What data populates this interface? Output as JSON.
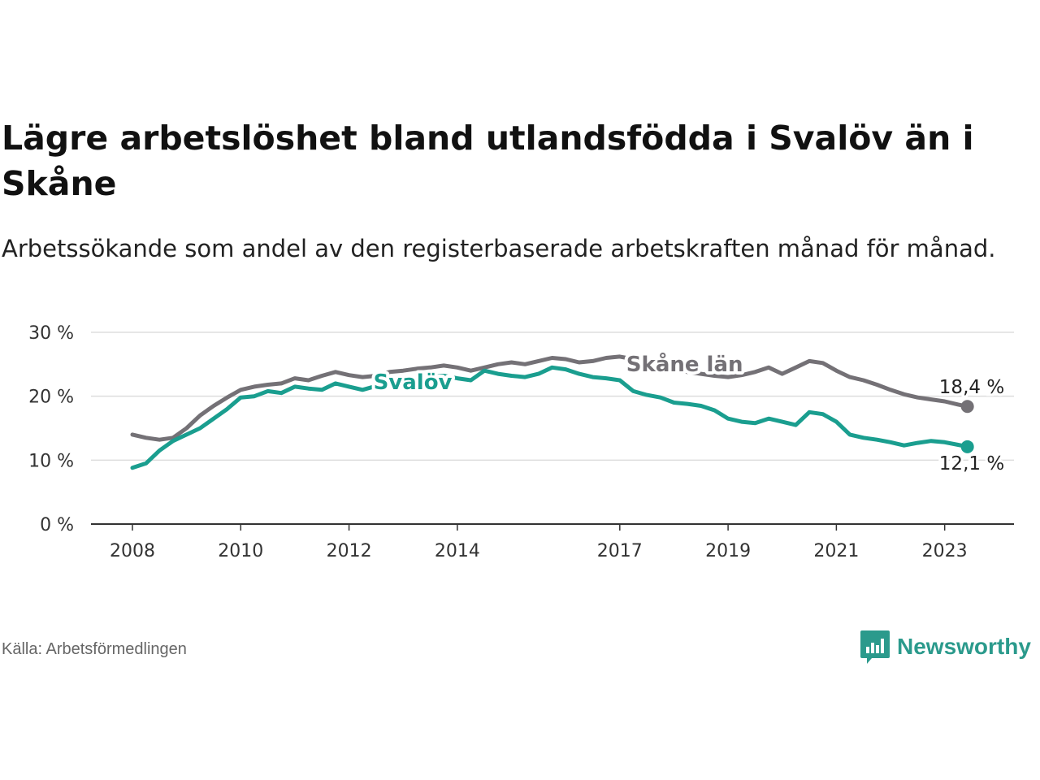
{
  "title": "Lägre arbetslöshet bland utlandsfödda i Svalöv än i Skåne",
  "subtitle": "Arbetssökande som andel av den registerbaserade arbetskraften månad för månad.",
  "source": "Källa: Arbetsförmedlingen",
  "brand": "Newsworthy",
  "colors": {
    "svalov": "#1a9e8f",
    "skane": "#747176",
    "grid": "#dddddd",
    "axis": "#333333",
    "brand": "#2b9a8c"
  },
  "chart_data": {
    "type": "line",
    "title": "",
    "xlabel": "",
    "ylabel": "",
    "ylim": [
      0,
      30
    ],
    "xlim": [
      2008.0,
      2023.5
    ],
    "y_ticks": [
      0,
      10,
      20,
      30
    ],
    "y_tick_labels": [
      "0 %",
      "10 %",
      "20 %",
      "30 %"
    ],
    "x_ticks": [
      2008,
      2010,
      2012,
      2014,
      2017,
      2019,
      2021,
      2023
    ],
    "x_tick_labels": [
      "2008",
      "2010",
      "2012",
      "2014",
      "2017",
      "2019",
      "2021",
      "2023"
    ],
    "grid": true,
    "series": [
      {
        "name": "Skåne län",
        "color": "#747176",
        "label": "Skåne län",
        "end_label": "18,4 %",
        "x": [
          2008.0,
          2008.25,
          2008.5,
          2008.75,
          2009.0,
          2009.25,
          2009.5,
          2009.75,
          2010.0,
          2010.25,
          2010.5,
          2010.75,
          2011.0,
          2011.25,
          2011.5,
          2011.75,
          2012.0,
          2012.25,
          2012.5,
          2012.75,
          2013.0,
          2013.25,
          2013.5,
          2013.75,
          2014.0,
          2014.25,
          2014.5,
          2014.75,
          2015.0,
          2015.25,
          2015.5,
          2015.75,
          2016.0,
          2016.25,
          2016.5,
          2016.75,
          2017.0,
          2017.25,
          2017.5,
          2017.75,
          2018.0,
          2018.25,
          2018.5,
          2018.75,
          2019.0,
          2019.25,
          2019.5,
          2019.75,
          2020.0,
          2020.25,
          2020.5,
          2020.75,
          2021.0,
          2021.25,
          2021.5,
          2021.75,
          2022.0,
          2022.25,
          2022.5,
          2022.75,
          2023.0,
          2023.25,
          2023.42
        ],
        "values": [
          14.0,
          13.5,
          13.2,
          13.5,
          15.0,
          17.0,
          18.5,
          19.8,
          21.0,
          21.5,
          21.8,
          22.0,
          22.8,
          22.5,
          23.2,
          23.8,
          23.3,
          23.0,
          23.2,
          23.8,
          24.0,
          24.3,
          24.5,
          24.8,
          24.5,
          24.0,
          24.5,
          25.0,
          25.3,
          25.0,
          25.5,
          26.0,
          25.8,
          25.3,
          25.5,
          26.0,
          26.2,
          25.8,
          25.0,
          24.5,
          24.2,
          23.8,
          23.5,
          23.2,
          23.0,
          23.3,
          23.8,
          24.5,
          23.5,
          24.5,
          25.5,
          25.2,
          24.0,
          23.0,
          22.5,
          21.8,
          21.0,
          20.3,
          19.8,
          19.5,
          19.2,
          18.7,
          18.4
        ]
      },
      {
        "name": "Svalöv",
        "color": "#1a9e8f",
        "label": "Svalöv",
        "end_label": "12,1 %",
        "x": [
          2008.0,
          2008.25,
          2008.5,
          2008.75,
          2009.0,
          2009.25,
          2009.5,
          2009.75,
          2010.0,
          2010.25,
          2010.5,
          2010.75,
          2011.0,
          2011.25,
          2011.5,
          2011.75,
          2012.0,
          2012.25,
          2012.5,
          2012.75,
          2013.0,
          2013.25,
          2013.5,
          2013.75,
          2014.0,
          2014.25,
          2014.5,
          2014.75,
          2015.0,
          2015.25,
          2015.5,
          2015.75,
          2016.0,
          2016.25,
          2016.5,
          2016.75,
          2017.0,
          2017.25,
          2017.5,
          2017.75,
          2018.0,
          2018.25,
          2018.5,
          2018.75,
          2019.0,
          2019.25,
          2019.5,
          2019.75,
          2020.0,
          2020.25,
          2020.5,
          2020.75,
          2021.0,
          2021.25,
          2021.5,
          2021.75,
          2022.0,
          2022.25,
          2022.5,
          2022.75,
          2023.0,
          2023.25,
          2023.42
        ],
        "values": [
          8.8,
          9.5,
          11.5,
          13.0,
          14.0,
          15.0,
          16.5,
          18.0,
          19.8,
          20.0,
          20.8,
          20.5,
          21.5,
          21.2,
          21.0,
          22.0,
          21.5,
          21.0,
          21.6,
          22.2,
          22.5,
          22.8,
          23.0,
          23.2,
          22.8,
          22.5,
          24.0,
          23.5,
          23.2,
          23.0,
          23.5,
          24.5,
          24.2,
          23.5,
          23.0,
          22.8,
          22.5,
          20.8,
          20.2,
          19.8,
          19.0,
          18.8,
          18.5,
          17.8,
          16.5,
          16.0,
          15.8,
          16.5,
          16.0,
          15.5,
          17.5,
          17.2,
          16.0,
          14.0,
          13.5,
          13.2,
          12.8,
          12.3,
          12.7,
          13.0,
          12.8,
          12.4,
          12.1
        ]
      }
    ]
  }
}
